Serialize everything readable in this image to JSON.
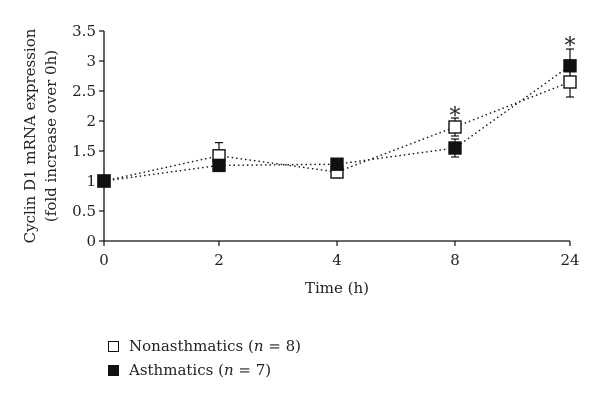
{
  "chart_data": {
    "type": "line",
    "x_tick_labels": [
      "0",
      "2",
      "4",
      "8",
      "24"
    ],
    "xlabel": "Time (h)",
    "ylabel_line1": "Cyclin D1 mRNA expression",
    "ylabel_line2": "(fold increase over 0h)",
    "ylim": [
      0,
      3.5
    ],
    "y_ticks": [
      "0",
      "0.5",
      "1",
      "1.5",
      "2",
      "2.5",
      "3",
      "3.5"
    ],
    "grid": false,
    "series": [
      {
        "name": "Nonasthmatics",
        "label_prefix": "Nonasthmatics (",
        "label_n": "n",
        "label_suffix": " = 8)",
        "marker": "open-square",
        "values": [
          1.0,
          1.42,
          1.15,
          1.9,
          2.65
        ],
        "error": [
          0,
          0.22,
          0.1,
          0.15,
          0.25
        ]
      },
      {
        "name": "Asthmatics",
        "label_prefix": "Asthmatics (",
        "label_n": "n",
        "label_suffix": " = 7)",
        "marker": "filled-square",
        "values": [
          1.0,
          1.26,
          1.28,
          1.55,
          2.92
        ],
        "error": [
          0,
          0.08,
          0.08,
          0.15,
          0.28
        ]
      }
    ],
    "annotations": [
      {
        "text": "*",
        "x_index": 3,
        "y": 2.13
      },
      {
        "text": "*",
        "x_index": 4,
        "y": 3.3
      }
    ]
  }
}
